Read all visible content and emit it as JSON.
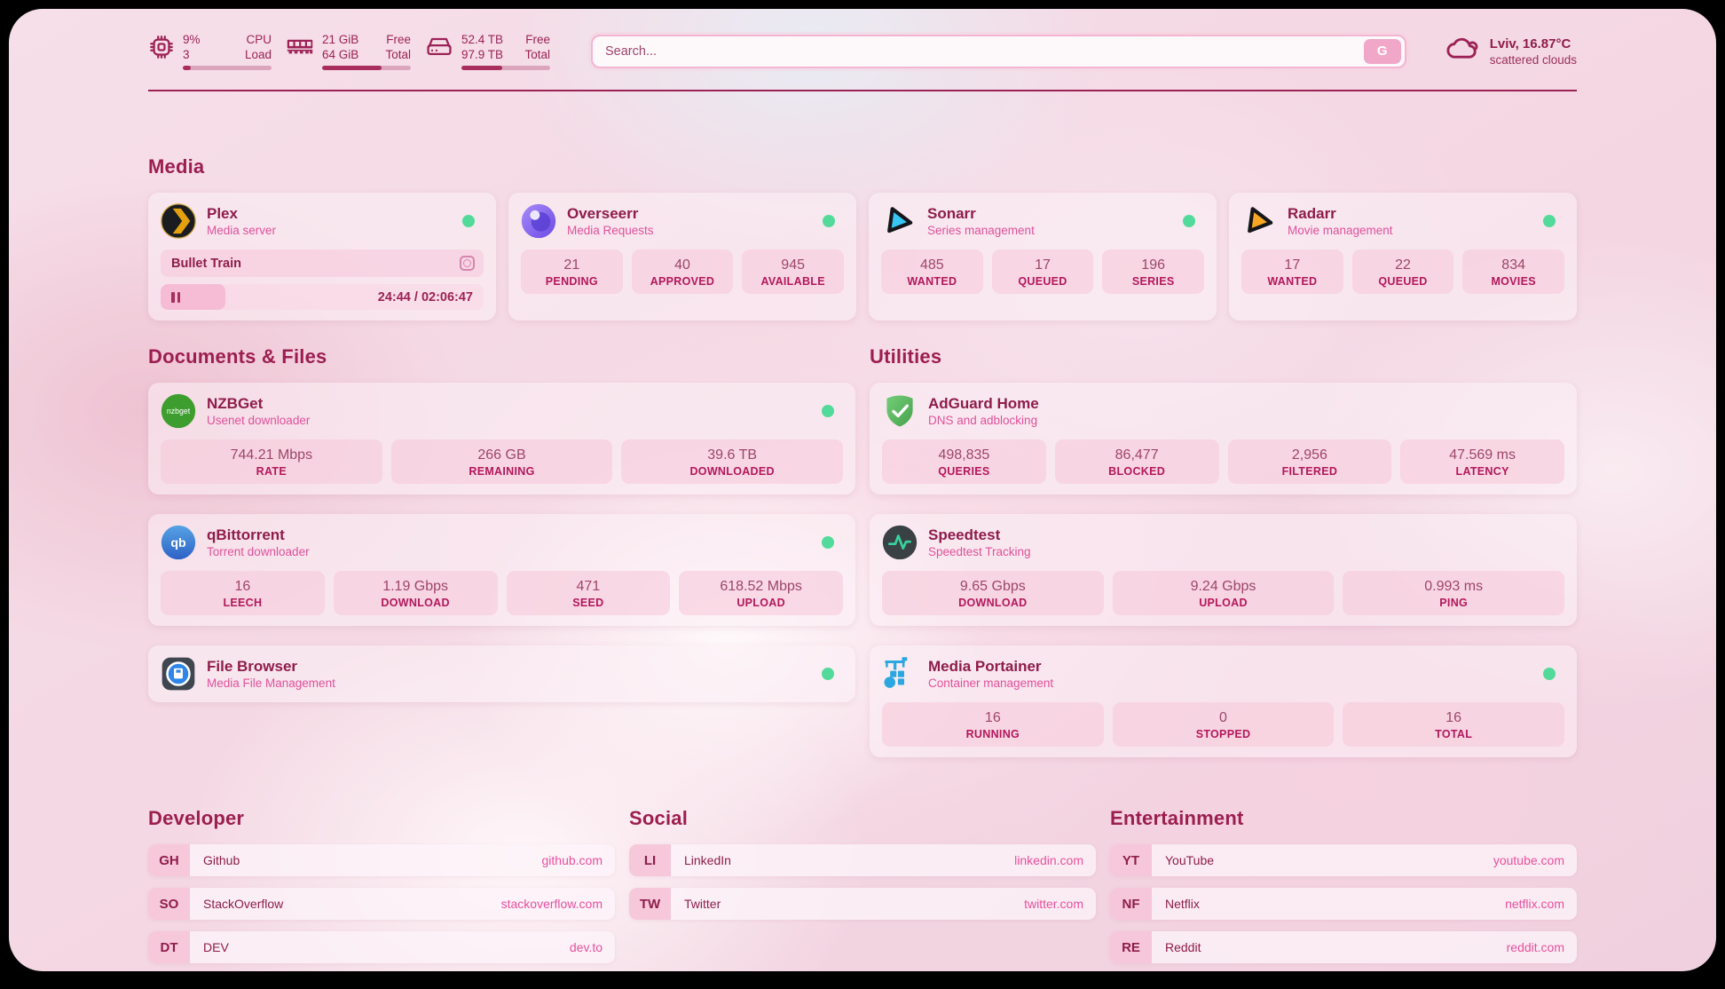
{
  "colors": {
    "accent": "#9c2256",
    "subtitle_pink": "#e0519c",
    "status_green": "#52da9b",
    "url_pink": "#e84f9e"
  },
  "header": {
    "cpu": {
      "value_top": "9%",
      "label_top": "CPU",
      "value_bottom": "3",
      "label_bottom": "Load",
      "progress_pct": 9
    },
    "memory": {
      "value_top": "21 GiB",
      "label_top": "Free",
      "value_bottom": "64 GiB",
      "label_bottom": "Total",
      "progress_pct": 67
    },
    "disk": {
      "value_top": "52.4 TB",
      "label_top": "Free",
      "value_bottom": "97.9 TB",
      "label_bottom": "Total",
      "progress_pct": 46
    },
    "search": {
      "placeholder": "Search...",
      "button_label": "G"
    },
    "weather": {
      "location_temp": "Lviv, 16.87°C",
      "condition": "scattered clouds"
    }
  },
  "sections": {
    "media": "Media",
    "documents": "Documents & Files",
    "utilities": "Utilities",
    "developer": "Developer",
    "social": "Social",
    "entertainment": "Entertainment"
  },
  "apps": {
    "plex": {
      "name": "Plex",
      "description": "Media server",
      "now_playing": "Bullet Train",
      "time": "24:44 / 02:06:47",
      "progress_pct": 20
    },
    "overseerr": {
      "name": "Overseerr",
      "description": "Media Requests",
      "stats": [
        {
          "value": "21",
          "label": "PENDING"
        },
        {
          "value": "40",
          "label": "APPROVED"
        },
        {
          "value": "945",
          "label": "AVAILABLE"
        }
      ]
    },
    "sonarr": {
      "name": "Sonarr",
      "description": "Series management",
      "stats": [
        {
          "value": "485",
          "label": "WANTED"
        },
        {
          "value": "17",
          "label": "QUEUED"
        },
        {
          "value": "196",
          "label": "SERIES"
        }
      ]
    },
    "radarr": {
      "name": "Radarr",
      "description": "Movie management",
      "stats": [
        {
          "value": "17",
          "label": "WANTED"
        },
        {
          "value": "22",
          "label": "QUEUED"
        },
        {
          "value": "834",
          "label": "MOVIES"
        }
      ]
    },
    "nzbget": {
      "name": "NZBGet",
      "description": "Usenet downloader",
      "stats": [
        {
          "value": "744.21 Mbps",
          "label": "RATE"
        },
        {
          "value": "266 GB",
          "label": "REMAINING"
        },
        {
          "value": "39.6 TB",
          "label": "DOWNLOADED"
        }
      ]
    },
    "qbittorrent": {
      "name": "qBittorrent",
      "description": "Torrent downloader",
      "stats": [
        {
          "value": "16",
          "label": "LEECH"
        },
        {
          "value": "1.19 Gbps",
          "label": "DOWNLOAD"
        },
        {
          "value": "471",
          "label": "SEED"
        },
        {
          "value": "618.52 Mbps",
          "label": "UPLOAD"
        }
      ]
    },
    "filebrowser": {
      "name": "File Browser",
      "description": "Media File Management"
    },
    "adguard": {
      "name": "AdGuard Home",
      "description": "DNS and adblocking",
      "stats": [
        {
          "value": "498,835",
          "label": "QUERIES"
        },
        {
          "value": "86,477",
          "label": "BLOCKED"
        },
        {
          "value": "2,956",
          "label": "FILTERED"
        },
        {
          "value": "47.569 ms",
          "label": "LATENCY"
        }
      ]
    },
    "speedtest": {
      "name": "Speedtest",
      "description": "Speedtest Tracking",
      "stats": [
        {
          "value": "9.65 Gbps",
          "label": "DOWNLOAD"
        },
        {
          "value": "9.24 Gbps",
          "label": "UPLOAD"
        },
        {
          "value": "0.993 ms",
          "label": "PING"
        }
      ]
    },
    "portainer": {
      "name": "Media Portainer",
      "description": "Container management",
      "stats": [
        {
          "value": "16",
          "label": "RUNNING"
        },
        {
          "value": "0",
          "label": "STOPPED"
        },
        {
          "value": "16",
          "label": "TOTAL"
        }
      ]
    }
  },
  "bookmarks": {
    "developer": [
      {
        "abbr": "GH",
        "name": "Github",
        "url": "github.com"
      },
      {
        "abbr": "SO",
        "name": "StackOverflow",
        "url": "stackoverflow.com"
      },
      {
        "abbr": "DT",
        "name": "DEV",
        "url": "dev.to"
      }
    ],
    "social": [
      {
        "abbr": "LI",
        "name": "LinkedIn",
        "url": "linkedin.com"
      },
      {
        "abbr": "TW",
        "name": "Twitter",
        "url": "twitter.com"
      }
    ],
    "entertainment": [
      {
        "abbr": "YT",
        "name": "YouTube",
        "url": "youtube.com"
      },
      {
        "abbr": "NF",
        "name": "Netflix",
        "url": "netflix.com"
      },
      {
        "abbr": "RE",
        "name": "Reddit",
        "url": "reddit.com"
      }
    ]
  }
}
